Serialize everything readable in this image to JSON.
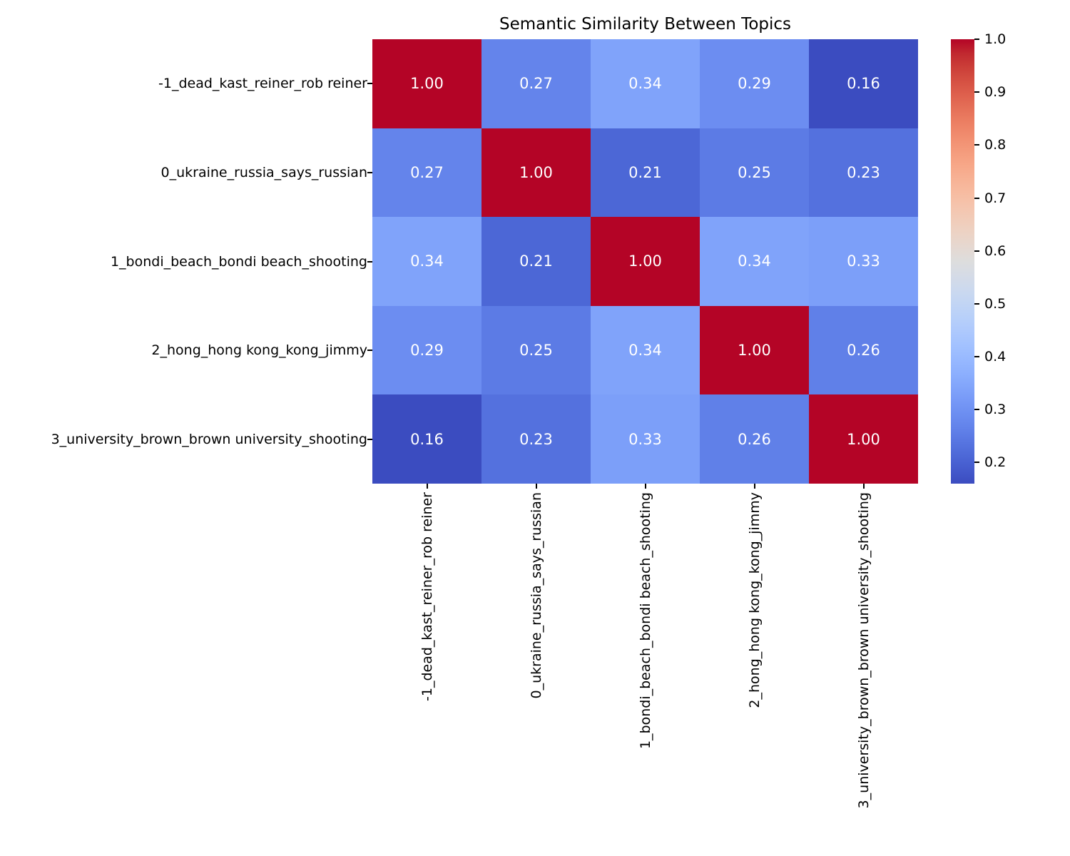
{
  "title": "Semantic Similarity Between Topics",
  "colors": {
    "background": "#ffffff",
    "text": "#000000",
    "tick": "#000000",
    "max_color": "#B40426",
    "min_color": "#3B4CC0"
  },
  "chart_data": {
    "type": "heatmap",
    "title": "Semantic Similarity Between Topics",
    "colormap": "coolwarm",
    "grid": false,
    "legend_position": "right-colorbar",
    "categories": [
      "-1_dead_kast_reiner_rob reiner",
      "0_ukraine_russia_says_russian",
      "1_bondi_beach_bondi beach_shooting",
      "2_hong_hong kong_kong_jimmy",
      "3_university_brown_brown university_shooting"
    ],
    "matrix": [
      [
        1.0,
        0.27,
        0.34,
        0.29,
        0.16
      ],
      [
        0.27,
        1.0,
        0.21,
        0.25,
        0.23
      ],
      [
        0.34,
        0.21,
        1.0,
        0.34,
        0.33
      ],
      [
        0.29,
        0.25,
        0.34,
        1.0,
        0.26
      ],
      [
        0.16,
        0.23,
        0.33,
        0.26,
        1.0
      ]
    ],
    "value_labels": [
      [
        "1.00",
        "0.27",
        "0.34",
        "0.29",
        "0.16"
      ],
      [
        "0.27",
        "1.00",
        "0.21",
        "0.25",
        "0.23"
      ],
      [
        "0.34",
        "0.21",
        "1.00",
        "0.34",
        "0.33"
      ],
      [
        "0.29",
        "0.25",
        "0.34",
        "1.00",
        "0.26"
      ],
      [
        "0.16",
        "0.23",
        "0.33",
        "0.26",
        "1.00"
      ]
    ],
    "cell_colors": [
      [
        "#B40426",
        "#6484EB",
        "#80A3FA",
        "#6C8DF1",
        "#3B4CC0"
      ],
      [
        "#6484EB",
        "#B40426",
        "#4C67D6",
        "#5C7BE5",
        "#5471DE"
      ],
      [
        "#80A3FA",
        "#4C67D6",
        "#B40426",
        "#80A3FA",
        "#7C9FF9"
      ],
      [
        "#6C8DF1",
        "#5C7BE5",
        "#80A3FA",
        "#B40426",
        "#6080E8"
      ],
      [
        "#3B4CC0",
        "#5471DE",
        "#7C9FF9",
        "#6080E8",
        "#B40426"
      ]
    ],
    "annotation_color": "#ffffff",
    "colorbar": {
      "vmin": 0.16,
      "vmax": 1.0,
      "tick_values": [
        1.0,
        0.9,
        0.8,
        0.7,
        0.6,
        0.5,
        0.4,
        0.3,
        0.2
      ],
      "tick_labels": [
        "1.0",
        "0.9",
        "0.8",
        "0.7",
        "0.6",
        "0.5",
        "0.4",
        "0.3",
        "0.2"
      ],
      "gradient_bottom_to_top": [
        "#3B4CC0",
        "#445ACC",
        "#4D68D7",
        "#5775E1",
        "#6282EA",
        "#6C8EF1",
        "#7799F7",
        "#82A5FB",
        "#8DB0FE",
        "#98B9FF",
        "#A3C2FF",
        "#AEC9FD",
        "#B8D0F9",
        "#C2D5F4",
        "#CCD9EE",
        "#D5DBE6",
        "#DDDDDD",
        "#E5D8D1",
        "#ECD3C5",
        "#F1CCB9",
        "#F5C4AD",
        "#F7BBA0",
        "#F7B194",
        "#F7A687",
        "#F49A7B",
        "#F18D6F",
        "#EC7F63",
        "#E57058",
        "#DE604D",
        "#D55042",
        "#CB3E38",
        "#C0282F",
        "#B40426"
      ]
    }
  }
}
